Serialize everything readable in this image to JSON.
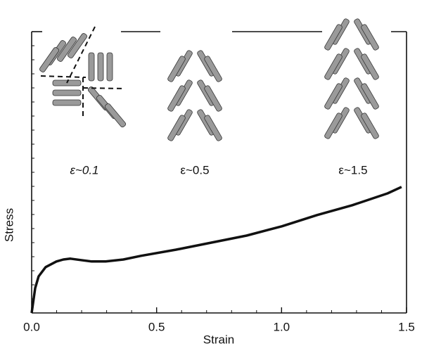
{
  "chart_data": {
    "type": "line",
    "x_label": "Strain",
    "y_label": "Stress",
    "annotations": [
      "ε~0.1",
      "ε~0.5",
      "ε~1.5"
    ],
    "x": [
      0,
      0.014,
      0.028,
      0.056,
      0.099,
      0.127,
      0.155,
      0.197,
      0.24,
      0.296,
      0.367,
      0.437,
      0.578,
      0.719,
      0.86,
      1.001,
      1.142,
      1.283,
      1.424,
      1.48
    ],
    "values": [
      0,
      0.088,
      0.13,
      0.163,
      0.183,
      0.19,
      0.193,
      0.188,
      0.183,
      0.183,
      0.19,
      0.203,
      0.225,
      0.25,
      0.275,
      0.308,
      0.348,
      0.383,
      0.425,
      0.448
    ],
    "color": "#111111",
    "xlim": [
      0,
      1.5
    ],
    "ylim": [
      0,
      1
    ],
    "xticks": [
      {
        "value": 0,
        "label": "0.0"
      },
      0.5,
      {
        "value": 1,
        "label": "1.0"
      },
      1.5
    ]
  }
}
